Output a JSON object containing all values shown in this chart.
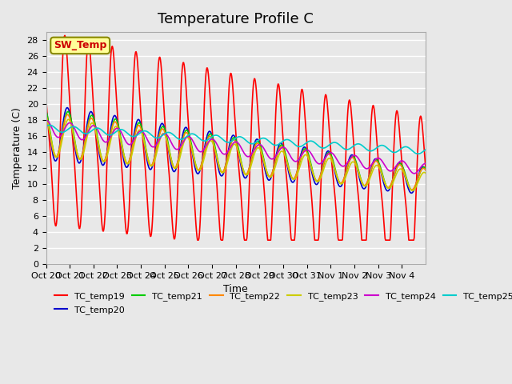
{
  "title": "Temperature Profile C",
  "xlabel": "Time",
  "ylabel": "Temperature (C)",
  "ylim": [
    0,
    29
  ],
  "yticks": [
    0,
    2,
    4,
    6,
    8,
    10,
    12,
    14,
    16,
    18,
    20,
    22,
    24,
    26,
    28
  ],
  "x_tick_labels": [
    "Oct 20",
    "Oct 21",
    "Oct 22",
    "Oct 23",
    "Oct 24",
    "Oct 25",
    "Oct 26",
    "Oct 27",
    "Oct 28",
    "Oct 29",
    "Oct 30",
    "Oct 31",
    "Nov 1",
    "Nov 2",
    "Nov 3",
    "Nov 4"
  ],
  "colors": {
    "TC_temp19": "#ff0000",
    "TC_temp20": "#0000cc",
    "TC_temp21": "#00cc00",
    "TC_temp22": "#ff8800",
    "TC_temp23": "#cccc00",
    "TC_temp24": "#cc00cc",
    "TC_temp25": "#00cccc"
  },
  "annotation_text": "SW_Temp",
  "annotation_color": "#cc0000",
  "annotation_bg": "#ffff99",
  "bg_color": "#e8e8e8",
  "grid_color": "#ffffff",
  "title_fontsize": 13,
  "label_fontsize": 9,
  "tick_fontsize": 8,
  "legend_fontsize": 8
}
